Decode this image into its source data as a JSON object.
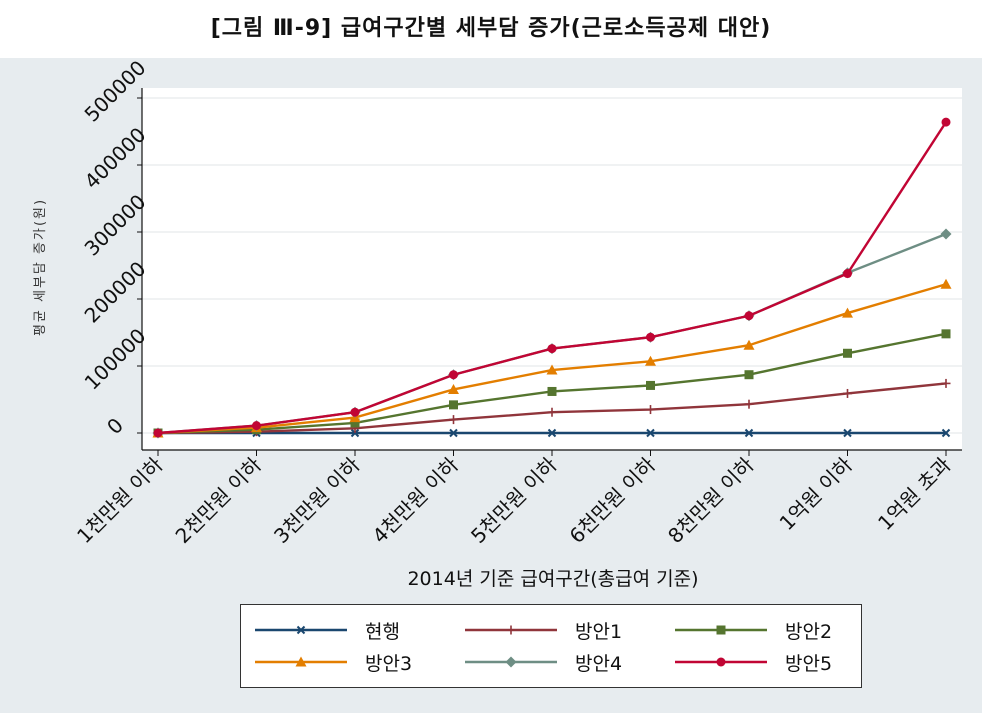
{
  "page_title": "[그림 Ⅲ-9] 급여구간별 세부담 증가(근로소득공제 대안)",
  "chart_data": {
    "type": "line",
    "title": "[그림 Ⅲ-9] 급여구간별 세부담 증가(근로소득공제 대안)",
    "xlabel": "2014년 기준 급여구간(총급여 기준)",
    "ylabel": "평균 세부담 증가(원)",
    "categories": [
      "1천만원 이하",
      "2천만원 이하",
      "3천만원 이하",
      "4천만원 이하",
      "5천만원 이하",
      "6천만원 이하",
      "8천만원 이하",
      "1억원 이하",
      "1억원 초과"
    ],
    "ylim": [
      0,
      520000
    ],
    "yticks": [
      "0",
      "100000",
      "200000",
      "300000",
      "400000",
      "500000"
    ],
    "grid": true,
    "legend_position": "bottom",
    "series": [
      {
        "name": "현행",
        "color": "#1a476f",
        "marker": "x",
        "values": [
          0,
          0,
          0,
          0,
          0,
          0,
          0,
          0,
          0
        ]
      },
      {
        "name": "방안1",
        "color": "#90353b",
        "marker": "plus",
        "values": [
          0,
          2000,
          7000,
          20000,
          31000,
          35000,
          43000,
          59000,
          74000
        ]
      },
      {
        "name": "방안2",
        "color": "#55752f",
        "marker": "square",
        "values": [
          0,
          5000,
          15000,
          42000,
          62000,
          71000,
          87000,
          119000,
          148000
        ]
      },
      {
        "name": "방안3",
        "color": "#e37e00",
        "marker": "triangle",
        "values": [
          0,
          8000,
          23000,
          65000,
          94000,
          107000,
          131000,
          179000,
          222000
        ]
      },
      {
        "name": "방안4",
        "color": "#6e8e84",
        "marker": "diamond",
        "values": [
          0,
          11000,
          31000,
          87000,
          126000,
          143000,
          175000,
          239000,
          297000
        ]
      },
      {
        "name": "방안5",
        "color": "#c10534",
        "marker": "circle",
        "values": [
          0,
          11000,
          31000,
          87000,
          126000,
          143000,
          175000,
          238000,
          464000
        ]
      }
    ]
  }
}
